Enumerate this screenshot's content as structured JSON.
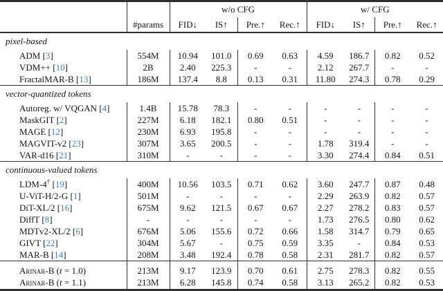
{
  "colors": {
    "citation": "#3b7cc4",
    "text": "#141414",
    "rule": "#2e2e2e"
  },
  "table": {
    "group_headers": {
      "wo_cfg": "w/o CFG",
      "w_cfg": "w/ CFG"
    },
    "col_headers": {
      "params": "#params",
      "fid": "FID↓",
      "is": "IS↑",
      "pre": "Pre.↑",
      "rec": "Rec.↑"
    },
    "sections": [
      {
        "label": "pixel-based",
        "rows": [
          {
            "model": "ADM",
            "cite": "[3]",
            "params": "554M",
            "values": [
              "10.94",
              "101.0",
              "0.69",
              "0.63",
              "4.59",
              "186.7",
              "0.82",
              "0.52"
            ]
          },
          {
            "model": "VDM++",
            "cite": "[10]",
            "params": "2B",
            "values": [
              "2.40",
              "225.3",
              "-",
              "-",
              "2.12",
              "267.7",
              "-",
              "-"
            ]
          },
          {
            "model": "FractalMAR-B",
            "cite": "[13]",
            "params": "186M",
            "values": [
              "137.4",
              "8.8",
              "0.13",
              "0.31",
              "11.80",
              "274.3",
              "0.78",
              "0.29"
            ]
          }
        ]
      },
      {
        "label": "vector-quantized tokens",
        "rows": [
          {
            "model": "Autoreg. w/ VQGAN",
            "cite": "[4]",
            "params": "1.4B",
            "values": [
              "15.78",
              "78.3",
              "-",
              "-",
              "-",
              "-",
              "-",
              "-"
            ]
          },
          {
            "model": "MaskGIT",
            "cite": "[2]",
            "params": "227M",
            "values": [
              "6.18",
              "182.1",
              "0.80",
              "0.51",
              "-",
              "-",
              "-",
              "-"
            ]
          },
          {
            "model": "MAGE",
            "cite": "[12]",
            "params": "230M",
            "values": [
              "6.93",
              "195.8",
              "-",
              "-",
              "-",
              "-",
              "-",
              "-"
            ]
          },
          {
            "model": "MAGVIT-v2",
            "cite": "[23]",
            "params": "307M",
            "values": [
              "3.65",
              "200.5",
              "-",
              "-",
              "1.78",
              "319.4",
              "-",
              "-"
            ]
          },
          {
            "model": "VAR-d16",
            "cite": "[21]",
            "params": "310M",
            "values": [
              "-",
              "-",
              "-",
              "-",
              "3.30",
              "274.4",
              "0.84",
              "0.51"
            ]
          }
        ]
      },
      {
        "label": "continuous-valued tokens",
        "rows": [
          {
            "model": "LDM-4",
            "sup": "†",
            "cite": "[19]",
            "params": "400M",
            "values": [
              "10.56",
              "103.5",
              "0.71",
              "0.62",
              "3.60",
              "247.7",
              "0.87",
              "0.48"
            ]
          },
          {
            "model": "U-ViT-H/2-G",
            "cite": "[1]",
            "params": "501M",
            "values": [
              "-",
              "-",
              "-",
              "-",
              "2.29",
              "263.9",
              "0.82",
              "0.57"
            ]
          },
          {
            "model": "DiT-XL/2",
            "cite": "[16]",
            "params": "675M",
            "values": [
              "9.62",
              "121.5",
              "0.67",
              "0.67",
              "2.27",
              "278.2",
              "0.83",
              "0.57"
            ]
          },
          {
            "model": "DiffT",
            "cite": "[8]",
            "params": "-",
            "values": [
              "-",
              "-",
              "-",
              "-",
              "1.73",
              "276.5",
              "0.80",
              "0.62"
            ]
          },
          {
            "model": "MDTv2-XL/2",
            "cite": "[6]",
            "params": "676M",
            "values": [
              "5.06",
              "155.6",
              "0.72",
              "0.66",
              "1.58",
              "314.7",
              "0.79",
              "0.65"
            ]
          },
          {
            "model": "GIVT",
            "cite": "[22]",
            "params": "304M",
            "values": [
              "5.67",
              "-",
              "0.75",
              "0.59",
              "3.35",
              "-",
              "0.84",
              "0.53"
            ]
          },
          {
            "model": "MAR-B",
            "cite": "[14]",
            "params": "208M",
            "values": [
              "3.48",
              "192.4",
              "0.78",
              "0.58",
              "2.31",
              "281.7",
              "0.82",
              "0.57"
            ]
          }
        ]
      }
    ],
    "footer_rows": [
      {
        "model": "Arinar-B",
        "smallcaps": true,
        "variant": {
          "pre": " (",
          "italic": "t",
          "post": " = 1.0)"
        },
        "params": "213M",
        "values": [
          "9.17",
          "123.9",
          "0.70",
          "0.61",
          "2.75",
          "278.3",
          "0.82",
          "0.55"
        ]
      },
      {
        "model": "Arinar-B",
        "smallcaps": true,
        "variant": {
          "pre": " (",
          "italic": "t",
          "post": " = 1.1)"
        },
        "params": "213M",
        "values": [
          "6.28",
          "145.8",
          "0.74",
          "0.58",
          "3.13",
          "265.2",
          "0.82",
          "0.53"
        ]
      }
    ]
  }
}
